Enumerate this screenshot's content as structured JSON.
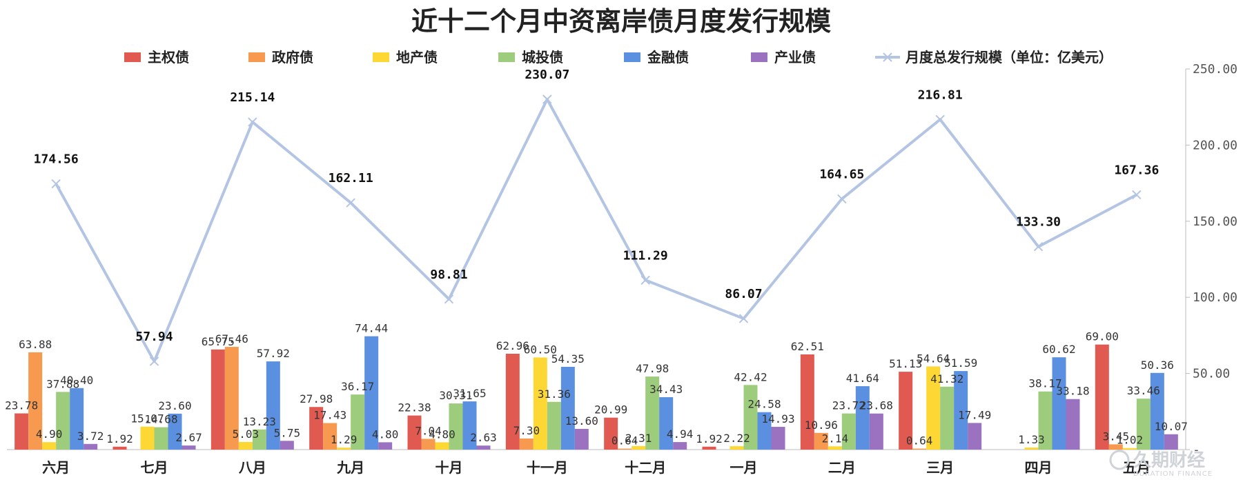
{
  "chart_data": {
    "type": "bar+line",
    "title": "近十二个月中资离岸债月度发行规模",
    "categories": [
      "六月",
      "七月",
      "八月",
      "九月",
      "十月",
      "十一月",
      "十二月",
      "一月",
      "二月",
      "三月",
      "四月",
      "五月"
    ],
    "bar_ylim": [
      0,
      250
    ],
    "line_ylim": [
      0,
      250
    ],
    "right_axis_ticks": [
      "250.00",
      "200.00",
      "150.00",
      "100.00",
      "50.00",
      "-"
    ],
    "grid": false,
    "legend_position": "top",
    "series": [
      {
        "name": "主权债",
        "color": "#e05a52",
        "values": [
          23.78,
          1.92,
          65.75,
          27.98,
          22.38,
          62.96,
          20.99,
          1.92,
          62.51,
          51.13,
          0,
          69.0
        ],
        "labels": [
          "23.78",
          "1.92",
          "65.75",
          "27.98",
          "22.38",
          "62.96",
          "20.99",
          "1.92",
          "62.51",
          "51.13",
          "",
          "69.00"
        ]
      },
      {
        "name": "政府债",
        "color": "#f79a4f",
        "values": [
          63.88,
          0,
          67.46,
          17.43,
          7.04,
          7.3,
          0.64,
          0,
          10.96,
          0.64,
          0,
          3.45
        ],
        "labels": [
          "63.88",
          "",
          "67.46",
          "17.43",
          "7.04",
          "7.30",
          "0.64",
          "",
          "10.96",
          "0.64",
          "",
          "3.45"
        ]
      },
      {
        "name": "地产债",
        "color": "#fdd835",
        "values": [
          4.9,
          15.07,
          5.03,
          1.29,
          4.8,
          60.5,
          2.31,
          2.22,
          2.14,
          54.64,
          1.33,
          1.02
        ],
        "labels": [
          "4.90",
          "15.07",
          "5.03",
          "1.29",
          "4.80",
          "60.50",
          "2.31",
          "2.22",
          "2.14",
          "54.64",
          "1.33",
          "1.02"
        ]
      },
      {
        "name": "城投债",
        "color": "#9ccc7c",
        "values": [
          37.88,
          14.68,
          13.23,
          36.17,
          30.31,
          31.36,
          47.98,
          42.42,
          23.72,
          41.32,
          38.17,
          33.46
        ],
        "labels": [
          "37.88",
          "14.68",
          "13.23",
          "36.17",
          "30.31",
          "31.36",
          "47.98",
          "42.42",
          "23.72",
          "41.32",
          "38.17",
          "33.46"
        ]
      },
      {
        "name": "金融债",
        "color": "#5b8fe0",
        "values": [
          40.4,
          23.6,
          57.92,
          74.44,
          31.65,
          54.35,
          34.43,
          24.58,
          41.64,
          51.59,
          60.62,
          50.36
        ],
        "labels": [
          "40.40",
          "23.60",
          "57.92",
          "74.44",
          "31.65",
          "54.35",
          "34.43",
          "24.58",
          "41.64",
          "51.59",
          "60.62",
          "50.36"
        ]
      },
      {
        "name": "产业债",
        "color": "#9b72c0",
        "values": [
          3.72,
          2.67,
          5.75,
          4.8,
          2.63,
          13.6,
          4.94,
          14.93,
          23.68,
          17.49,
          33.18,
          10.07
        ],
        "labels": [
          "3.72",
          "2.67",
          "5.75",
          "4.80",
          "2.63",
          "13.60",
          "4.94",
          "14.93",
          "23.68",
          "17.49",
          "33.18",
          "10.07"
        ]
      }
    ],
    "line": {
      "name": "月度总发行规模（单位：亿美元）",
      "color": "#b3c5e3",
      "values": [
        174.56,
        57.94,
        215.14,
        162.11,
        98.81,
        230.07,
        111.29,
        86.07,
        164.65,
        216.81,
        133.3,
        167.36
      ],
      "labels": [
        "174.56",
        "57.94",
        "215.14",
        "162.11",
        "98.81",
        "230.07",
        "111.29",
        "86.07",
        "164.65",
        "216.81",
        "133.30",
        "167.36"
      ]
    }
  },
  "watermark": {
    "name": "久期财经",
    "sub": "DURATION FINANCE"
  }
}
